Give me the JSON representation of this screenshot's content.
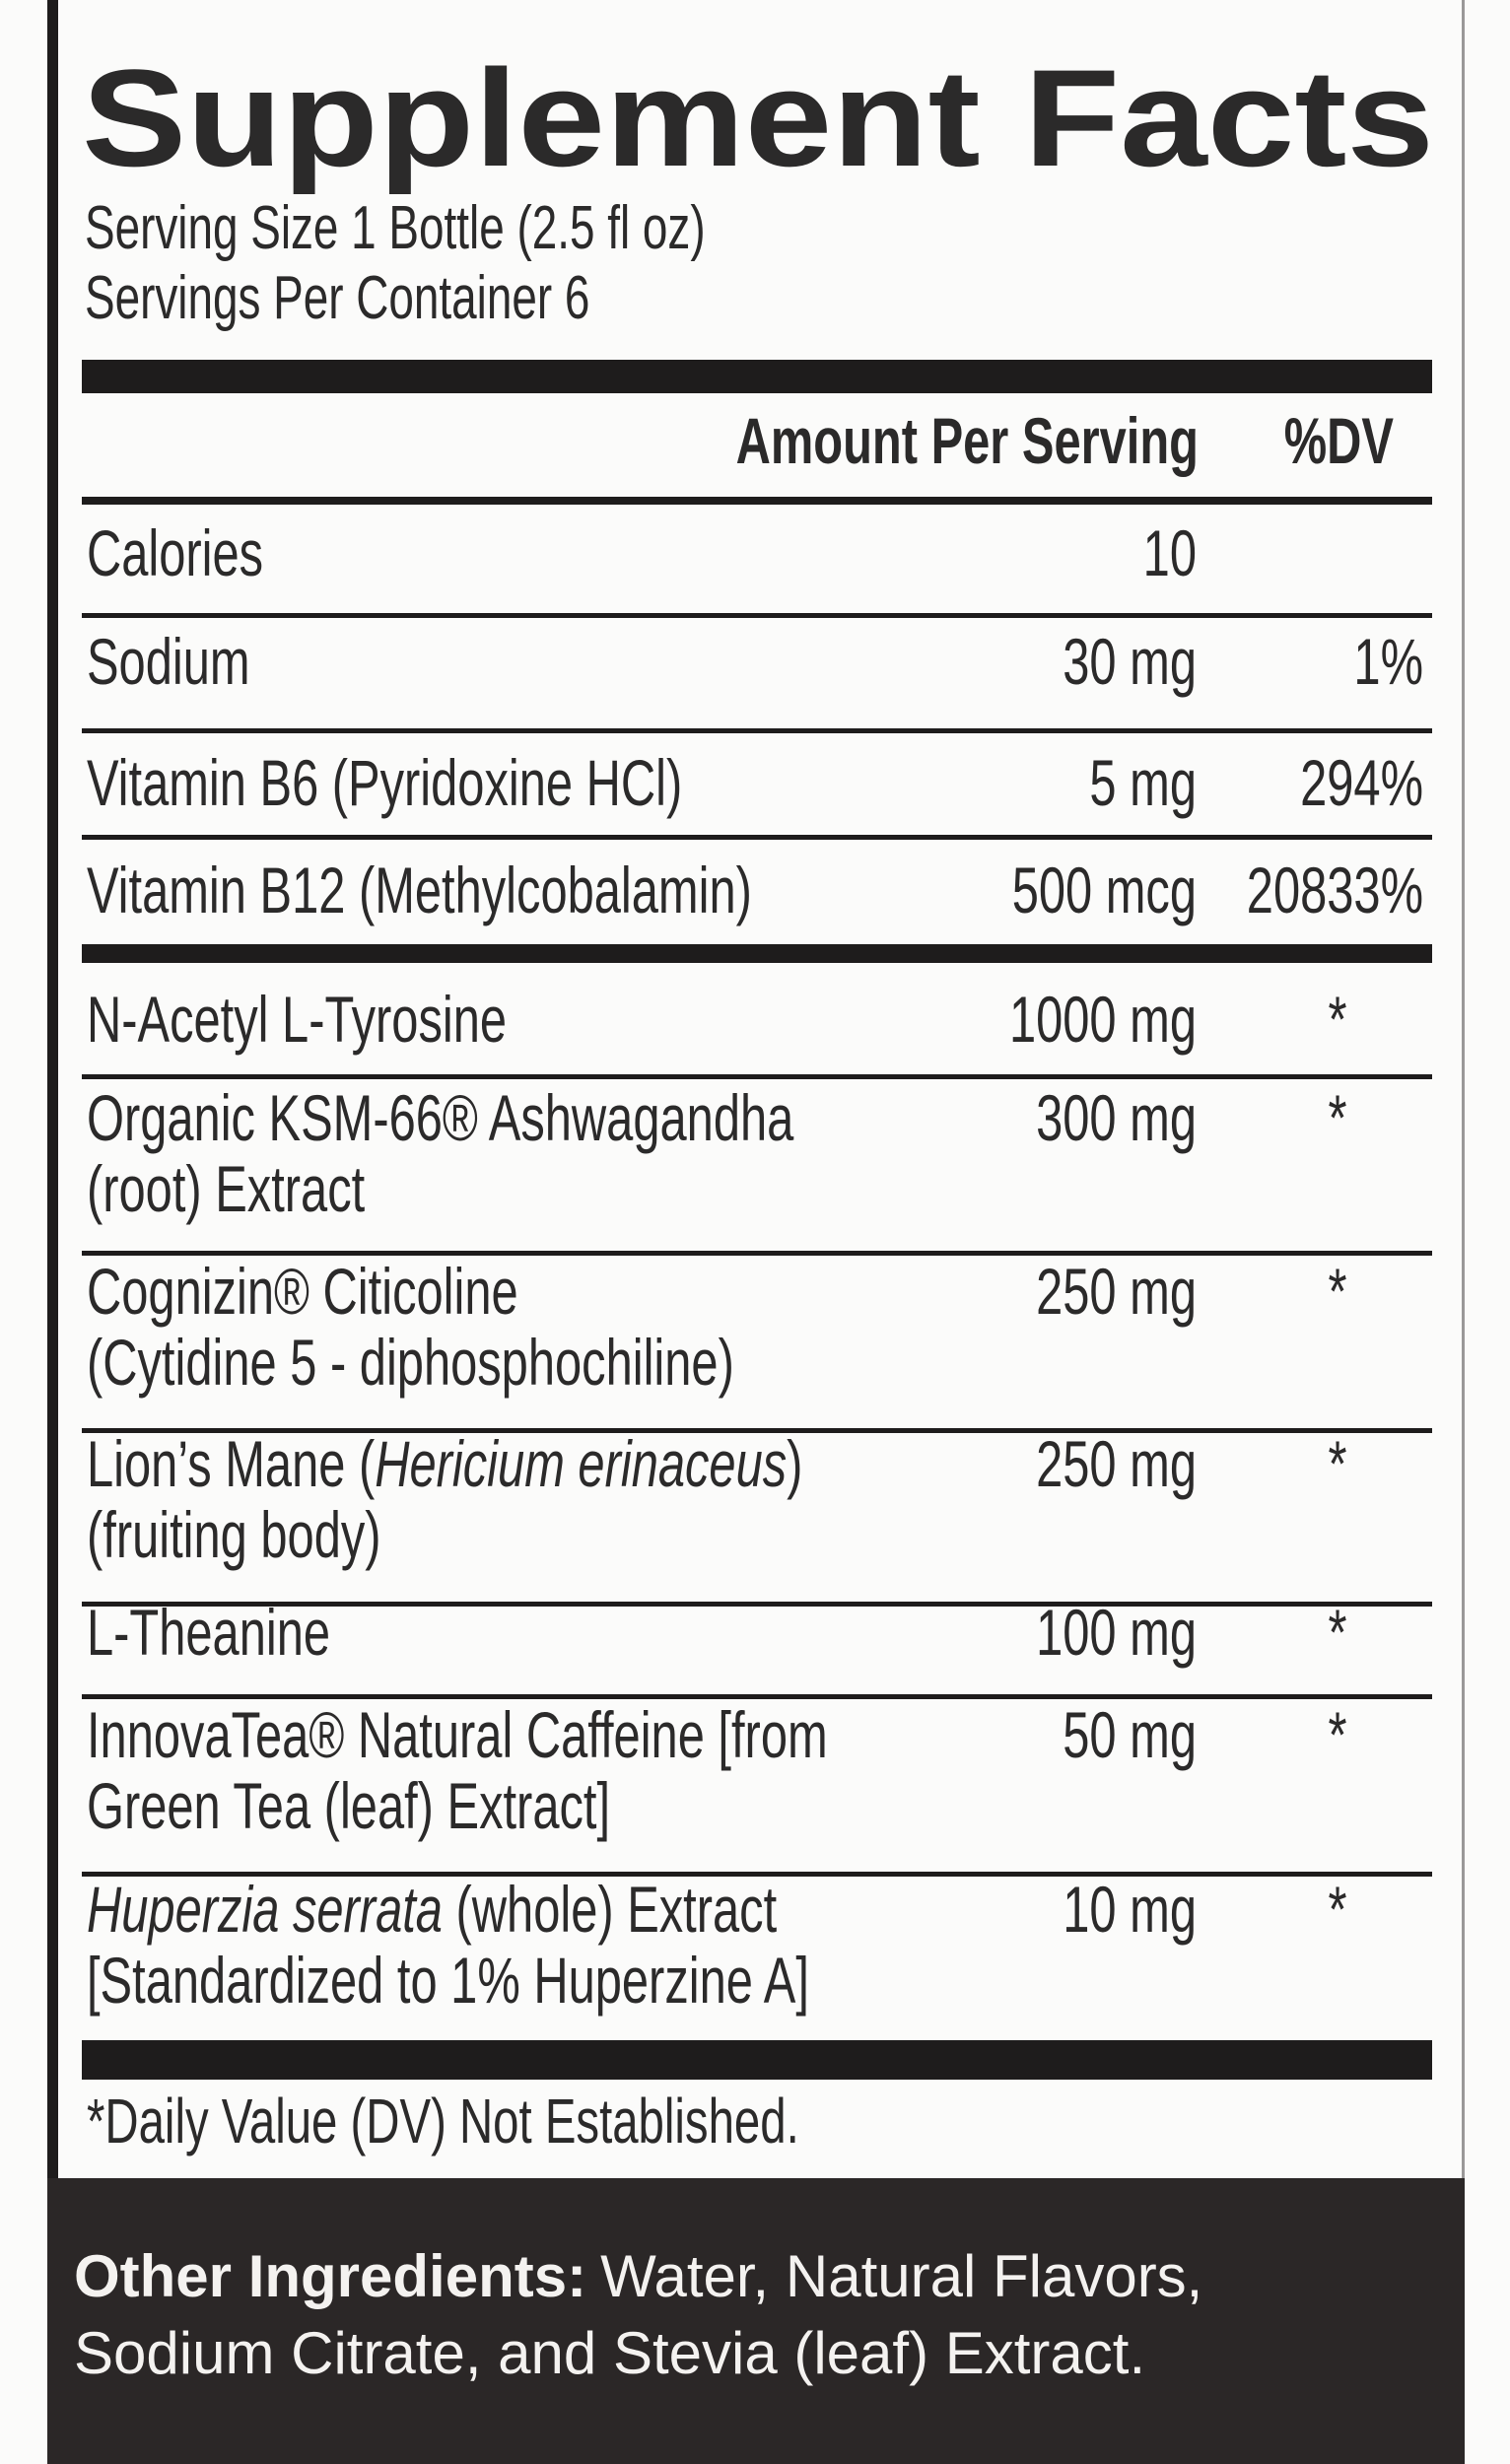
{
  "title": "Supplement Facts",
  "serving_size": "Serving Size 1 Bottle (2.5 fl oz)",
  "servings_per_container": "Servings Per Container 6",
  "table": {
    "header": [
      "Amount Per Serving",
      "%DV"
    ],
    "rows": [
      {
        "name": [
          [
            "Calories"
          ]
        ],
        "amount": "10"
      },
      {
        "name": [
          [
            "Sodium"
          ]
        ],
        "amount": "30 mg",
        "dv": "1%"
      },
      {
        "name": [
          [
            "Vitamin B6 (Pyridoxine HCl)"
          ]
        ],
        "amount": "5 mg",
        "dv": "294%"
      },
      {
        "name": [
          [
            "Vitamin B12 (Methylcobalamin)"
          ]
        ],
        "amount": "500 mcg",
        "dv": "20833%"
      },
      {
        "name": [
          [
            "N-Acetyl L-Tyrosine"
          ]
        ],
        "amount": "1000 mg",
        "dv": "*"
      },
      {
        "name": [
          [
            "Organic KSM-66® Ashwagandha"
          ],
          [
            "(root) Extract"
          ]
        ],
        "amount": "300 mg",
        "dv": "*"
      },
      {
        "name": [
          [
            "Cognizin® Citicoline"
          ],
          [
            "(Cytidine 5 - diphosphochiline)"
          ]
        ],
        "amount": "250 mg",
        "dv": "*"
      },
      {
        "name": [
          [
            "Lion’s Mane (",
            {
              "text": "Hericium erinaceus",
              "style": "italic"
            },
            ")"
          ],
          [
            "(fruiting body)"
          ]
        ],
        "amount": "250 mg",
        "dv": "*"
      },
      {
        "name": [
          [
            "L-Theanine"
          ]
        ],
        "amount": "100 mg",
        "dv": "*"
      },
      {
        "name": [
          [
            "InnovaTea® Natural Caffeine [from"
          ],
          [
            "Green Tea (leaf) Extract]"
          ]
        ],
        "amount": "50 mg",
        "dv": "*"
      },
      {
        "name": [
          [
            {
              "text": "Huperzia serrata",
              "style": "italic"
            },
            " (whole) Extract"
          ],
          [
            "[Standardized to 1% Huperzine A]"
          ]
        ],
        "amount": "10 mg",
        "dv": "*"
      }
    ]
  },
  "footnote": "*Daily Value (DV) Not Established.",
  "other_ingredients": {
    "label": "Other Ingredients:",
    "lines": [
      "Water, Natural Flavors,",
      "Sodium Citrate, and Stevia (leaf) Extract."
    ]
  }
}
